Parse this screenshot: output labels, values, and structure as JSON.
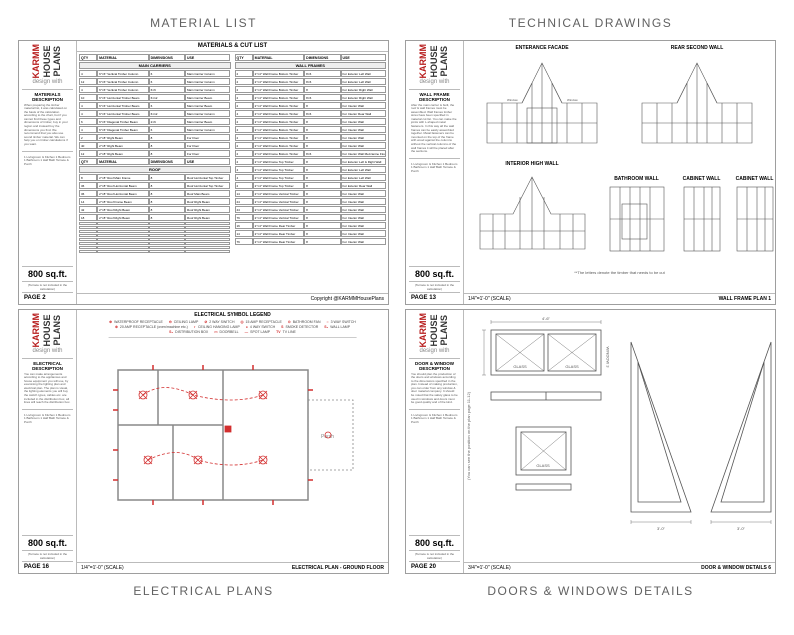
{
  "captions": {
    "tl": "MATERIAL LIST",
    "tr": "TECHNICAL DRAWINGS",
    "bl": "ELECTRICAL PLANS",
    "br": "DOORS & WINDOWS DETAILS"
  },
  "sidebar": {
    "brand1": "KARMM",
    "brand2": "HOUSE",
    "brand3": "PLANS",
    "brand4": "design with",
    "sqft": "800 sq.ft.",
    "sqftnote": "(Terrace is not included in the calculation)",
    "specs": "1 Livingroom & Kitchen\n1 Bedroom\n1 Bathroom\n1 Half Bath\nTerrace & Porch"
  },
  "sheets": {
    "material": {
      "title": "MATERIALS & CUT LIST",
      "page": "PAGE 2",
      "sideTitle": "MATERIALS DESCRIPTION",
      "sideDesc": "When preparing the timber material list, it was calculated on the basis of the calculation according to the chart, but if you cannot find these types and dimensions of timber, buy in your region and instead buy the dimensions you find. We recommend that you also use sound timber material. We can help you on timber calculations if you want.",
      "headers": [
        "QTY",
        "MATERIAL",
        "DIMENSIONS",
        "USE"
      ],
      "sections": [
        "MAIN CARRIERS",
        "ROOF",
        "WALL FRAMES"
      ],
      "rowsA": [
        [
          "4",
          "6\"×6\" Vertical Timber Column",
          "6",
          "Main Carrier Column"
        ],
        [
          "12",
          "6\"×6\" Vertical Timber Column",
          "6",
          "Main Carrier Column"
        ],
        [
          "4",
          "6\"×6\" Vertical Timber Column",
          "6×6",
          "Main Carrier Column"
        ],
        [
          "10",
          "6\"×6\" Horizontal Timber Beam",
          "6×12",
          "Main Carrier Beam"
        ],
        [
          "4",
          "6\"×6\" Horizontal Timber Beam",
          "6",
          "Main Carrier Beam"
        ],
        [
          "4",
          "6\"×6\" Horizontal Timber Beam",
          "6×12",
          "Main Carrier Column"
        ],
        [
          "6",
          "6\"×6\" Diagonal Timber Beam",
          "2×6",
          "Main Carrier Beam"
        ],
        [
          "4",
          "6\"×6\" Diagonal Timber Beam",
          "6",
          "Main Carrier Column"
        ],
        [
          "2",
          "2\"×8\" Right Beam",
          "8",
          "For Floor"
        ],
        [
          "40",
          "2\"×8\" Right Beam",
          "8",
          "For Floor"
        ],
        [
          "12",
          "2\"×8\" Right Beam",
          "8",
          "For Floor"
        ]
      ],
      "rowsB": [
        [
          "8",
          "2\"×8\" Roof Main Frame",
          "8",
          "Roof Horizontal Top Timber"
        ],
        [
          "36",
          "2\"×8\" Roof Horizontal Beam",
          "8",
          "Roof Horizontal Top Timber"
        ],
        [
          "36",
          "2\"×8\" Roof Horizontal Beam",
          "8",
          "Roof Main Beam"
        ],
        [
          "14",
          "2\"×8\" Roof Frame Beam",
          "8",
          "Roof Right Beam"
        ],
        [
          "42",
          "2\"×8\" Roof Right Beam",
          "8",
          "Roof Right Beam"
        ],
        [
          "18",
          "2\"×8\" Roof Right Beam",
          "8",
          "Roof Right Beam"
        ]
      ],
      "rowsC": [
        [
          "2",
          "2\"×4\" Wall Frame Bottom Timber",
          "8×6",
          "For Exterior Left Wall"
        ],
        [
          "2",
          "2\"×4\" Wall Frame Bottom Timber",
          "8×6",
          "For Exterior Left Wall"
        ],
        [
          "2",
          "2\"×4\" Wall Frame Bottom Timber",
          "8",
          "For Exterior Right Wall"
        ],
        [
          "2",
          "2\"×4\" Wall Frame Bottom Timber",
          "8×6",
          "For Exterior Right Wall"
        ],
        [
          "2",
          "2\"×4\" Wall Frame Bottom Timber",
          "8",
          "For Interior Wall"
        ],
        [
          "4",
          "2\"×4\" Wall Frame Bottom Timber",
          "8×6",
          "For Interior Rear Wall"
        ],
        [
          "2",
          "2\"×4\" Wall Frame Bottom Timber",
          "8",
          "For Interior Wall"
        ],
        [
          "4",
          "2\"×4\" Wall Frame Bottom Timber",
          "8",
          "For Interior Wall"
        ],
        [
          "2",
          "2\"×4\" Wall Frame Bottom Timber",
          "8",
          "For Interior Wall"
        ],
        [
          "2",
          "2\"×4\" Wall Frame Bottom Timber",
          "8",
          "For Interior Wall"
        ],
        [
          "2",
          "2\"×4\" Wall Frame Bottom Timber",
          "8×6",
          "For Interior Wall Mezzanine Floor"
        ],
        [
          "2",
          "2\"×4\" Wall Frame Top Timber",
          "8",
          "For Exterior Left & Right Wall"
        ],
        [
          "4",
          "2\"×4\" Wall Frame Top Timber",
          "8",
          "For Exterior Left Wall"
        ],
        [
          "4",
          "2\"×4\" Wall Frame Top Timber",
          "8",
          "For Exterior Left Wall"
        ],
        [
          "2",
          "2\"×4\" Wall Frame Top Timber",
          "8",
          "For Exterior Rear Wall"
        ],
        [
          "14",
          "2\"×4\" Wall Frame Vertical Timber",
          "8",
          "For Interior Wall"
        ],
        [
          "24",
          "2\"×4\" Wall Frame Vertical Timber",
          "8",
          "For Interior Wall"
        ],
        [
          "44",
          "2\"×4\" Wall Frame Vertical Timber",
          "8",
          "For Interior Wall"
        ],
        [
          "76",
          "2\"×4\" Wall Frame Vertical Timber",
          "8",
          "For Interior Wall"
        ],
        [
          "16",
          "2\"×4\" Wall Frame Rear Timber",
          "8",
          "For Interior Wall"
        ],
        [
          "14",
          "2\"×4\" Wall Frame Rear Timber",
          "8",
          "For Interior Wall"
        ],
        [
          "76",
          "2\"×4\" Wall Frame Rear Timber",
          "8",
          "For Interior Wall"
        ]
      ]
    },
    "technical": {
      "page": "PAGE 13",
      "sideTitle": "WALL FRAME DESCRIPTION",
      "sideDesc": "After the main carrier is built, the roof & wall frames must be assembled. Wall frames timber sizes have been specified in material cut list. You can make the joints with L-shaped metal fasteners. In this way all the wall frames can be easily assembled together. Metal fasteners can be mounted on the top of the frame with wood against the columns without the vertical columns of the wall frames it will be placed after the sections.",
      "scale": "1/4\"=1'-0\" (SCALE)",
      "note": "**The letters denote the timber that needs to be cut",
      "planTitle": "WALL FRAME PLAN 1",
      "walls": {
        "entrance": "ENTERANCE FACADE",
        "rear": "REAR SECOND WALL",
        "interior": "INTERIOR HIGH WALL",
        "bathroom": "BATHROOM WALL",
        "cabinet1": "CABINET WALL",
        "cabinet2": "CABINET WALL"
      }
    },
    "electrical": {
      "page": "PAGE 16",
      "sideTitle": "ELECTRICAL DESCRIPTION",
      "sideDesc": "You can make arrangements according to the appliances and house equipment you will use, by examining the lighting plan and electrical plan. The plan is visual, the lighting elements you will buy the switch types, cables etc. are included in the distribution box, all lines will reach the distribution box.",
      "scale": "1/4\"=1'-0\" (SCALE)",
      "planTitle": "ELECTRICAL PLAN - GROUND FLOOR",
      "legendTitle": "ELECTRICAL SYMBOL LEGEND",
      "legendItems": [
        "WATERPROOF RECEPTACLE",
        "CEILING LAMP",
        "2 WAY SWITCH",
        "15 AMP RECEPTACLE",
        "BATHROOM FAN",
        "3 WAY SWITCH",
        "20 AMP RECEPTACLE (oven/machine etc.)",
        "CEILING HANGING LAMP",
        "4 WAY SWITCH",
        "SMOKE DETECTOR",
        "WALL LAMP",
        "DISTRIBUTION BOX",
        "DOORBELL",
        "SPOT LAMP",
        "TV LINE"
      ],
      "porch": "Porch",
      "symColor": "#d32f2f",
      "planColor": "#888888"
    },
    "doors": {
      "page": "PAGE 20",
      "sideTitle": "DOOR & WINDOW DESCRIPTION",
      "sideDesc": "You should plan the production of the doors and windows according to the dimensions specified in the plan. Instead of making production, you can order from any window & door material company. It should be noted that the safety glass to be used in windows and doors must be good quality and of the kind.",
      "scale": "3/4\"=1'-0\" (SCALE)",
      "planTitle": "DOOR & WINDOW DETAILS 6",
      "verticalLeft": "(You can see the position on the plan page 11-12)",
      "labels": {
        "glass": "GLASS",
        "window3": "WINDOW 3",
        "window7": "WINDOW 7"
      },
      "dims": [
        "4'-6\"",
        "1'-3\"",
        "2'-9\"",
        "4'-0\"",
        "1'-0\"",
        "3'-0\"",
        "3'",
        "6'",
        "2'-0\""
      ]
    }
  },
  "copyright": "Copyright @KARMMHousePlans",
  "colors": {
    "border": "#9e9e9e",
    "brand": "#b71c1c",
    "line": "#555555",
    "elec": "#d32f2f"
  }
}
